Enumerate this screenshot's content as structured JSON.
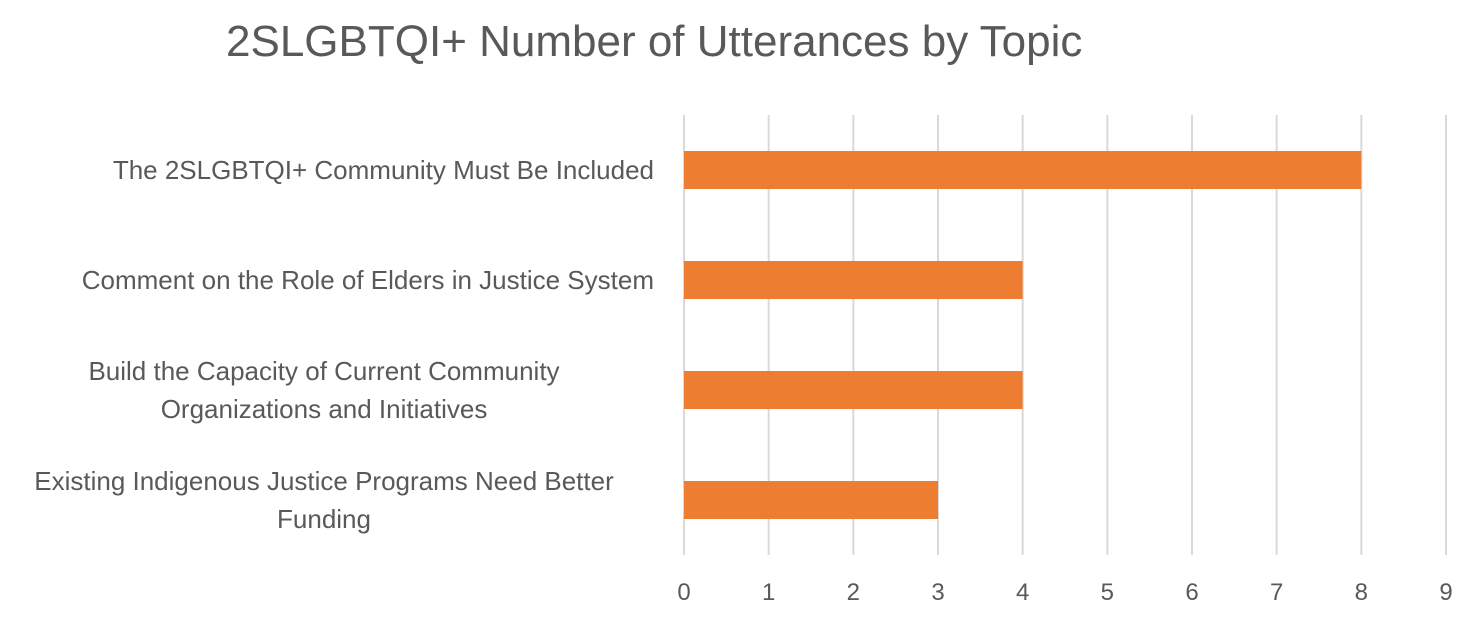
{
  "chart_data": {
    "type": "bar",
    "orientation": "horizontal",
    "title": "2SLGBTQI+ Number of Utterances by Topic",
    "categories": [
      "The 2SLGBTQI+ Community Must Be Included",
      "Comment on the Role of Elders in Justice System",
      "Build the Capacity of Current Community Organizations and Initiatives",
      "Existing Indigenous Justice Programs Need Better Funding"
    ],
    "category_lines": [
      [
        "The 2SLGBTQI+ Community Must Be Included"
      ],
      [
        "Comment on the Role of Elders in Justice System"
      ],
      [
        "Build the Capacity of Current Community",
        "Organizations and Initiatives"
      ],
      [
        "Existing Indigenous Justice Programs Need Better",
        "Funding"
      ]
    ],
    "values": [
      8,
      4,
      4,
      3
    ],
    "xlim": [
      0,
      9
    ],
    "xticks": [
      "0",
      "1",
      "2",
      "3",
      "4",
      "5",
      "6",
      "7",
      "8",
      "9"
    ],
    "grid": true,
    "legend": "none",
    "bar_color": "#ED7D31",
    "grid_color": "#D9D9D9",
    "text_color": "#595959"
  }
}
